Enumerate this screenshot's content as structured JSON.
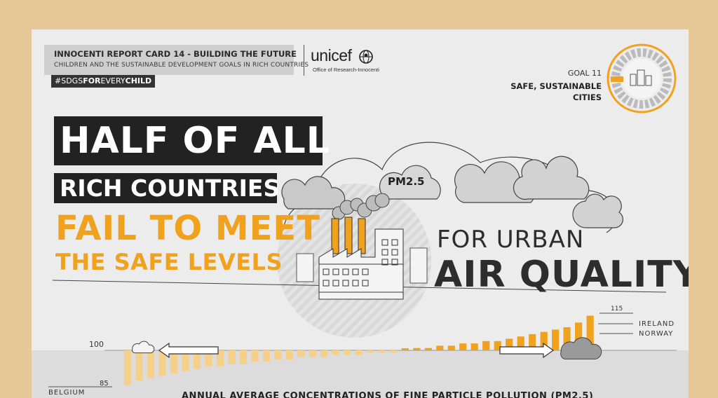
{
  "header": {
    "title": "INNOCENTI REPORT CARD 14 - BUILDING THE FUTURE",
    "subtitle": "CHILDREN AND THE SUSTAINABLE DEVELOPMENT GOALS IN RICH COUNTRIES",
    "hashtag_pre": "#SDGS",
    "hashtag_bold1": "FOR",
    "hashtag_mid": "EVERY",
    "hashtag_bold2": "CHILD"
  },
  "brand": {
    "name": "unicef",
    "office": "Office of Research-Innocenti"
  },
  "goal": {
    "number": "GOAL 11",
    "name": "SAFE, SUSTAINABLE CITIES"
  },
  "headline": {
    "line1": "HALF OF ALL",
    "line2": "RICH COUNTRIES",
    "line3": "FAIL TO MEET",
    "line4": "THE SAFE LEVELS",
    "line5": "FOR URBAN",
    "line6": "AIR QUALITY"
  },
  "cloud_label": "PM2.5",
  "chart_data": {
    "type": "bar",
    "title": "ANNUAL AVERAGE CONCENTRATIONS OF FINE PARTICLE POLLUTION (PM2.5)",
    "reference_value": 100,
    "reference_label": "100",
    "labels": {
      "max_value": "115",
      "min_value": "85",
      "country_low": "BELGIUM",
      "country_high1": "IRELAND",
      "country_high2": "NORWAY"
    },
    "values": [
      85,
      87,
      88,
      89,
      90,
      91,
      92,
      93,
      93,
      94,
      94,
      95,
      95,
      96,
      96,
      97,
      97,
      97,
      98,
      98,
      98,
      99,
      99,
      99,
      100,
      101,
      101,
      102,
      102,
      103,
      103,
      104,
      104,
      105,
      106,
      107,
      108,
      109,
      110,
      112,
      115
    ],
    "colors": {
      "below": "#f5d08a",
      "above": "#f0a21e"
    }
  },
  "colors": {
    "accent": "#f0a21e",
    "dark": "#222222",
    "frame": "#e6c896"
  }
}
